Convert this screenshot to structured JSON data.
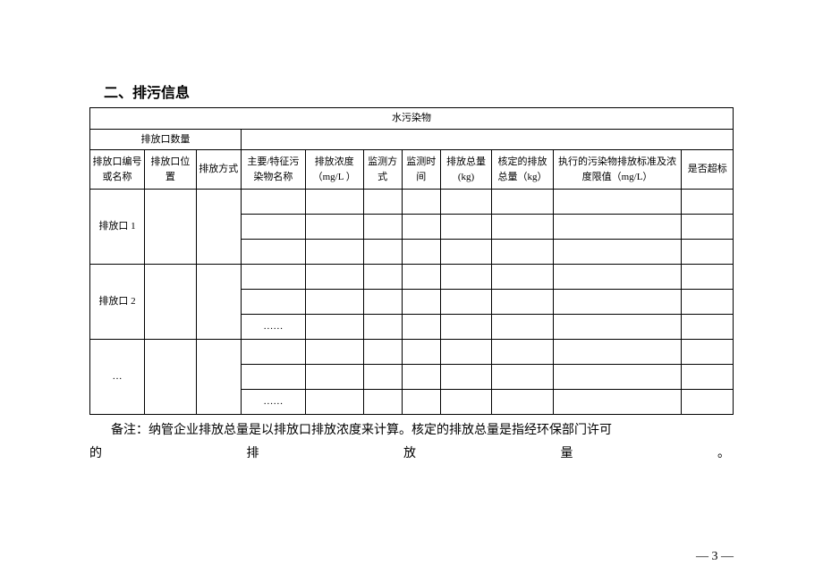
{
  "section": {
    "title": "二、排污信息"
  },
  "table": {
    "header_main": "水污染物",
    "header_sub": "排放口数量",
    "columns": [
      "排放口编号或名称",
      "排放口位置",
      "排放方式",
      "主要/特征污染物名称",
      "排放浓度（mg/L ）",
      "监测方式",
      "监测时间",
      "排放总量(kg)",
      "核定的排放总量（kg）",
      "执行的污染物排放标准及浓度限值（mg/L）",
      "是否超标"
    ],
    "group1_label": "排放口 1",
    "group2_label": "排放口 2",
    "group3_label": "…",
    "ellipsis": "……",
    "blank": ""
  },
  "note": {
    "line1": "备注：纳管企业排放总量是以排放口排放浓度来计算。核定的排放总量是指经环保部门许可",
    "line2_parts": [
      "的",
      "排",
      "放",
      "量",
      "。"
    ]
  },
  "page_number": "— 3 —",
  "style": {
    "font_family": "SimSun",
    "text_color": "#000000",
    "background_color": "#ffffff",
    "border_color": "#000000",
    "title_fontsize": 16,
    "cell_fontsize": 11,
    "note_fontsize": 14
  }
}
